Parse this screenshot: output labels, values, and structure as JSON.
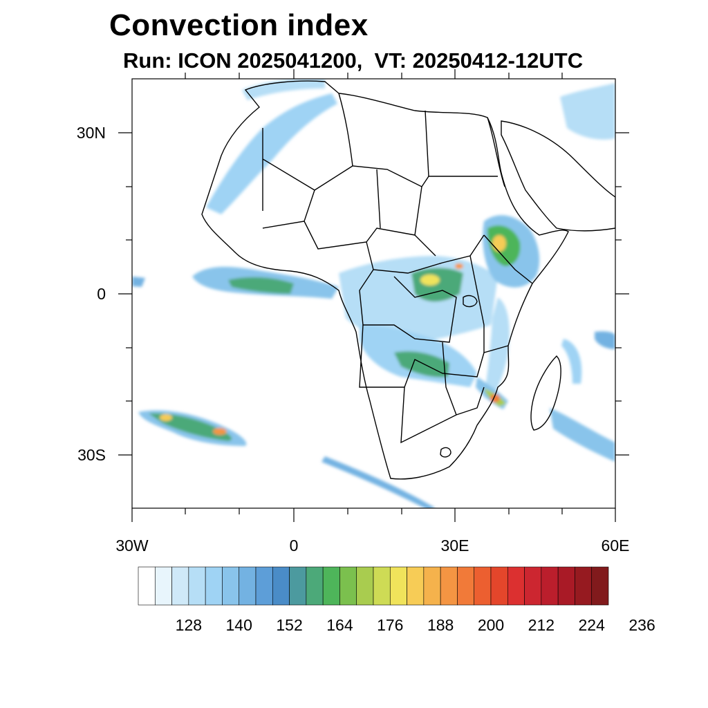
{
  "title": "Convection index",
  "subtitle": "Run: ICON 2025041200,  VT: 20250412-12UTC",
  "map": {
    "lon_labels": [
      "30W",
      "0",
      "30E",
      "60E"
    ],
    "lat_labels": [
      "30N",
      "0",
      "30S"
    ]
  },
  "colorbar": {
    "colors": [
      "#ffffff",
      "#e8f5fc",
      "#cfe9f8",
      "#b6def6",
      "#9fd3f4",
      "#89c4eb",
      "#73b2e2",
      "#5d9ed8",
      "#4a8cc7",
      "#4c9a9f",
      "#4ca979",
      "#4eb55a",
      "#7bc04e",
      "#a9cc4f",
      "#cedb55",
      "#f0e35b",
      "#f7cc56",
      "#f5b24c",
      "#f49543",
      "#f17a39",
      "#ec5f30",
      "#e4462b",
      "#dc3030",
      "#cc2630",
      "#bb1e2c",
      "#a91a26",
      "#961a20",
      "#811a1c"
    ],
    "labels": [
      "128",
      "140",
      "152",
      "164",
      "176",
      "188",
      "200",
      "212",
      "224",
      "236"
    ]
  }
}
